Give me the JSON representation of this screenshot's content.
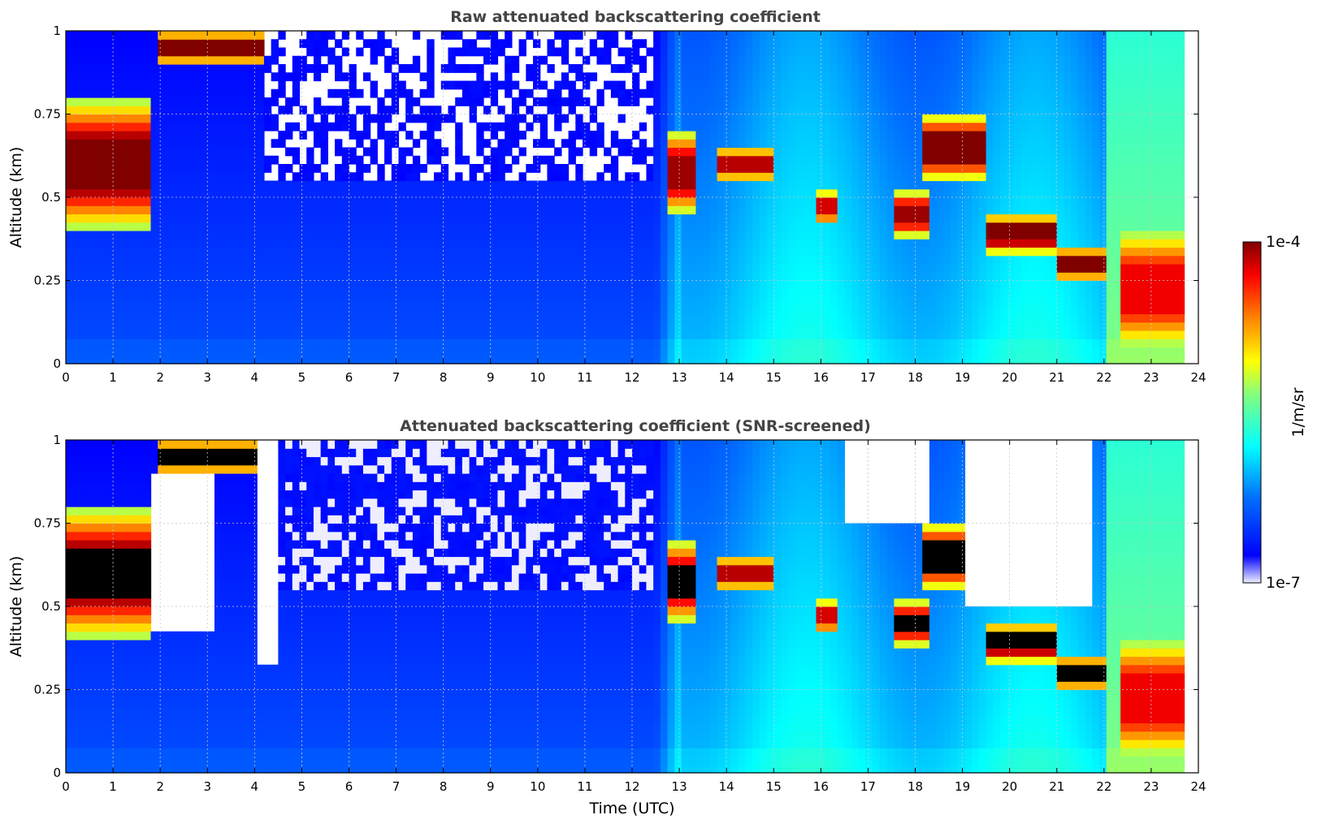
{
  "chart_data": [
    {
      "type": "heatmap",
      "title": "Raw attenuated backscattering coefficient",
      "xlabel": "",
      "ylabel": "Altitude (km)",
      "xlim": [
        0,
        24
      ],
      "ylim": [
        0,
        1
      ],
      "x_ticks": [
        "0",
        "1",
        "2",
        "3",
        "4",
        "5",
        "6",
        "7",
        "8",
        "9",
        "10",
        "11",
        "12",
        "13",
        "14",
        "15",
        "16",
        "17",
        "18",
        "19",
        "20",
        "21",
        "22",
        "23",
        "24"
      ],
      "y_ticks": [
        "0",
        "0.25",
        "0.5",
        "0.75",
        "1"
      ],
      "grid": true,
      "colorscale": "jet",
      "value_range": [
        1e-07,
        0.0001
      ],
      "layers": [
        {
          "t_start": 0.0,
          "t_end": 1.8,
          "alt_low": 0.4,
          "alt_high": 0.8,
          "intensity": 1.0
        },
        {
          "t_start": 2.0,
          "t_end": 4.2,
          "alt_low": 0.9,
          "alt_high": 1.0,
          "intensity": 1.0
        },
        {
          "t_start": 12.7,
          "t_end": 13.4,
          "alt_low": 0.45,
          "alt_high": 0.7,
          "intensity": 0.95
        },
        {
          "t_start": 13.8,
          "t_end": 15.0,
          "alt_low": 0.55,
          "alt_high": 0.65,
          "intensity": 0.9
        },
        {
          "t_start": 15.9,
          "t_end": 16.4,
          "alt_low": 0.42,
          "alt_high": 0.52,
          "intensity": 0.85
        },
        {
          "t_start": 17.5,
          "t_end": 18.3,
          "alt_low": 0.38,
          "alt_high": 0.52,
          "intensity": 0.95
        },
        {
          "t_start": 18.2,
          "t_end": 19.5,
          "alt_low": 0.55,
          "alt_high": 0.75,
          "intensity": 1.0
        },
        {
          "t_start": 19.5,
          "t_end": 21.0,
          "alt_low": 0.33,
          "alt_high": 0.45,
          "intensity": 1.0
        },
        {
          "t_start": 21.0,
          "t_end": 22.1,
          "alt_low": 0.25,
          "alt_high": 0.35,
          "intensity": 1.0
        },
        {
          "t_start": 22.3,
          "t_end": 23.7,
          "alt_low": 0.05,
          "alt_high": 0.4,
          "intensity": 0.8
        }
      ]
    },
    {
      "type": "heatmap",
      "title": "Attenuated backscattering coefficient (SNR-screened)",
      "xlabel": "Time (UTC)",
      "ylabel": "Altitude (km)",
      "xlim": [
        0,
        24
      ],
      "ylim": [
        0,
        1
      ],
      "x_ticks": [
        "0",
        "1",
        "2",
        "3",
        "4",
        "5",
        "6",
        "7",
        "8",
        "9",
        "10",
        "11",
        "12",
        "13",
        "14",
        "15",
        "16",
        "17",
        "18",
        "19",
        "20",
        "21",
        "22",
        "23",
        "24"
      ],
      "y_ticks": [
        "0",
        "0.25",
        "0.5",
        "0.75",
        "1"
      ],
      "grid": true,
      "colorscale": "jet",
      "value_range": [
        1e-07,
        0.0001
      ],
      "screened_regions": [
        {
          "t_start": 1.8,
          "t_end": 3.2,
          "alt_low": 0.42,
          "alt_high": 0.9
        },
        {
          "t_start": 4.0,
          "t_end": 4.5,
          "alt_low": 0.32,
          "alt_high": 1.0
        },
        {
          "t_start": 16.5,
          "t_end": 18.3,
          "alt_low": 0.75,
          "alt_high": 1.0
        },
        {
          "t_start": 19.0,
          "t_end": 21.8,
          "alt_low": 0.5,
          "alt_high": 1.0
        }
      ]
    }
  ],
  "colorbar": {
    "label": "1/m/sr",
    "max_label": "1e-4",
    "min_label": "1e-7",
    "colors": [
      "#eeeeff",
      "#0000ff",
      "#0080ff",
      "#00ffff",
      "#80ff80",
      "#ffff00",
      "#ff8000",
      "#ff0000",
      "#800000"
    ]
  }
}
